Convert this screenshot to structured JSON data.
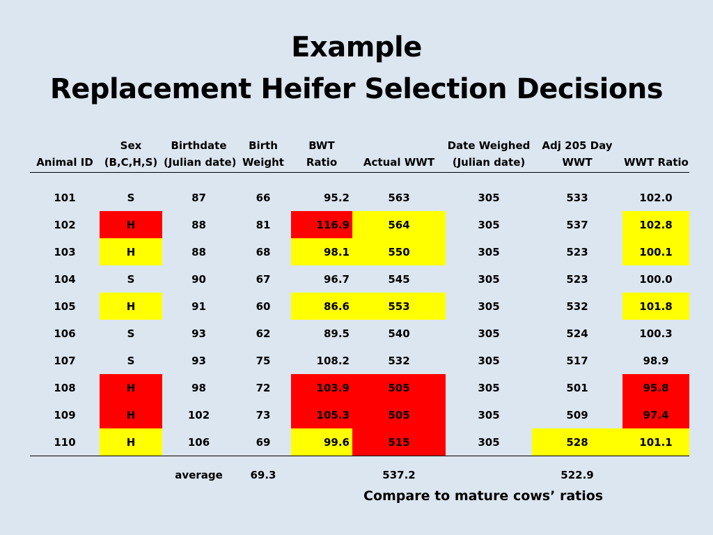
{
  "title": {
    "line1": "Example",
    "line2": "Replacement Heifer Selection Decisions"
  },
  "table": {
    "headers": {
      "animal_id": [
        "",
        "Animal ID"
      ],
      "sex": [
        "Sex",
        "(B,C,H,S)"
      ],
      "birthdate": [
        "Birthdate",
        "(Julian date)"
      ],
      "birth_weight": [
        "Birth",
        "Weight"
      ],
      "bwt_ratio": [
        "BWT",
        "Ratio"
      ],
      "actual_wwt": [
        "",
        "Actual WWT"
      ],
      "date_weighed": [
        "Date Weighed",
        "(Julian date)"
      ],
      "adj_205": [
        "Adj 205 Day",
        "WWT"
      ],
      "wwt_ratio": [
        "",
        "WWT Ratio"
      ]
    },
    "rows": [
      {
        "animal_id": "101",
        "sex": "S",
        "birthdate": "87",
        "birth_weight": "66",
        "bwt_ratio": "95.2",
        "actual_wwt": "563",
        "date_weighed": "305",
        "adj_205": "533",
        "wwt_ratio": "102.0",
        "highlight": {}
      },
      {
        "animal_id": "102",
        "sex": "H",
        "birthdate": "88",
        "birth_weight": "81",
        "bwt_ratio": "116.9",
        "actual_wwt": "564",
        "date_weighed": "305",
        "adj_205": "537",
        "wwt_ratio": "102.8",
        "highlight": {
          "sex": "red",
          "bwt_ratio": "red",
          "actual_wwt": "yellow",
          "wwt_ratio": "yellow"
        }
      },
      {
        "animal_id": "103",
        "sex": "H",
        "birthdate": "88",
        "birth_weight": "68",
        "bwt_ratio": "98.1",
        "actual_wwt": "550",
        "date_weighed": "305",
        "adj_205": "523",
        "wwt_ratio": "100.1",
        "highlight": {
          "sex": "yellow",
          "bwt_ratio": "yellow",
          "actual_wwt": "yellow",
          "wwt_ratio": "yellow"
        }
      },
      {
        "animal_id": "104",
        "sex": "S",
        "birthdate": "90",
        "birth_weight": "67",
        "bwt_ratio": "96.7",
        "actual_wwt": "545",
        "date_weighed": "305",
        "adj_205": "523",
        "wwt_ratio": "100.0",
        "highlight": {}
      },
      {
        "animal_id": "105",
        "sex": "H",
        "birthdate": "91",
        "birth_weight": "60",
        "bwt_ratio": "86.6",
        "actual_wwt": "553",
        "date_weighed": "305",
        "adj_205": "532",
        "wwt_ratio": "101.8",
        "highlight": {
          "sex": "yellow",
          "bwt_ratio": "yellow",
          "actual_wwt": "yellow",
          "wwt_ratio": "yellow"
        }
      },
      {
        "animal_id": "106",
        "sex": "S",
        "birthdate": "93",
        "birth_weight": "62",
        "bwt_ratio": "89.5",
        "actual_wwt": "540",
        "date_weighed": "305",
        "adj_205": "524",
        "wwt_ratio": "100.3",
        "highlight": {}
      },
      {
        "animal_id": "107",
        "sex": "S",
        "birthdate": "93",
        "birth_weight": "75",
        "bwt_ratio": "108.2",
        "actual_wwt": "532",
        "date_weighed": "305",
        "adj_205": "517",
        "wwt_ratio": "98.9",
        "highlight": {}
      },
      {
        "animal_id": "108",
        "sex": "H",
        "birthdate": "98",
        "birth_weight": "72",
        "bwt_ratio": "103.9",
        "actual_wwt": "505",
        "date_weighed": "305",
        "adj_205": "501",
        "wwt_ratio": "95.8",
        "highlight": {
          "sex": "red",
          "bwt_ratio": "red",
          "actual_wwt": "red",
          "wwt_ratio": "red"
        }
      },
      {
        "animal_id": "109",
        "sex": "H",
        "birthdate": "102",
        "birth_weight": "73",
        "bwt_ratio": "105.3",
        "actual_wwt": "505",
        "date_weighed": "305",
        "adj_205": "509",
        "wwt_ratio": "97.4",
        "highlight": {
          "sex": "red",
          "bwt_ratio": "red",
          "actual_wwt": "red",
          "wwt_ratio": "red"
        }
      },
      {
        "animal_id": "110",
        "sex": "H",
        "birthdate": "106",
        "birth_weight": "69",
        "bwt_ratio": "99.6",
        "actual_wwt": "515",
        "date_weighed": "305",
        "adj_205": "528",
        "wwt_ratio": "101.1",
        "highlight": {
          "sex": "yellow",
          "bwt_ratio": "yellow",
          "actual_wwt": "red",
          "adj_205": "yellow",
          "wwt_ratio": "yellow"
        }
      }
    ],
    "average": {
      "label": "average",
      "birth_weight": "69.3",
      "actual_wwt": "537.2",
      "adj_205": "522.9"
    }
  },
  "note": "Compare to mature cows’ ratios",
  "colors": {
    "background": "#dce6f0",
    "highlight_yellow": "#ffff00",
    "highlight_red": "#ff0000"
  }
}
